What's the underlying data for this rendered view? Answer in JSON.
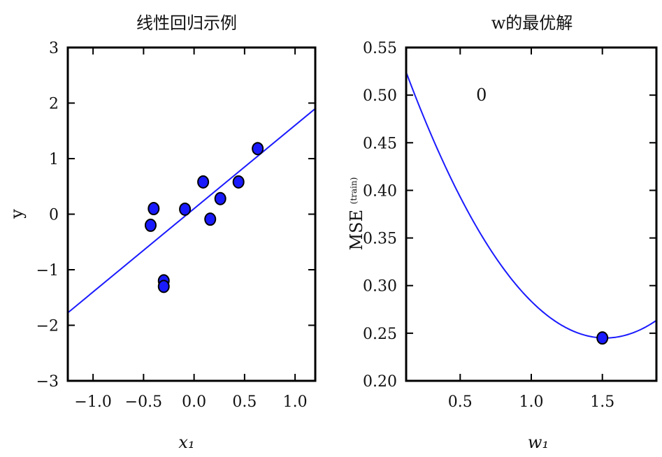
{
  "chart_data": [
    {
      "type": "scatter",
      "title": "线性回归示例",
      "xlabel": "x₁",
      "ylabel": "y",
      "xlim": [
        -1.25,
        1.2
      ],
      "ylim": [
        -3,
        3
      ],
      "xticks": [
        -1.0,
        -0.5,
        0.0,
        0.5,
        1.0
      ],
      "xtick_labels": [
        "−1.0",
        "−0.5",
        "0.0",
        "0.5",
        "1.0"
      ],
      "yticks": [
        -3,
        -2,
        -1,
        0,
        1,
        2,
        3
      ],
      "ytick_labels": [
        "−3",
        "−2",
        "−1",
        "0",
        "1",
        "2",
        "3"
      ],
      "grid": false,
      "legend": "none",
      "series": [
        {
          "kind": "points",
          "color": "#1a1aff",
          "points": [
            {
              "x": -0.43,
              "y": -0.2
            },
            {
              "x": -0.4,
              "y": 0.1
            },
            {
              "x": -0.3,
              "y": -1.2
            },
            {
              "x": -0.3,
              "y": -1.3
            },
            {
              "x": -0.09,
              "y": 0.09
            },
            {
              "x": 0.09,
              "y": 0.58
            },
            {
              "x": 0.16,
              "y": -0.09
            },
            {
              "x": 0.26,
              "y": 0.28
            },
            {
              "x": 0.44,
              "y": 0.58
            },
            {
              "x": 0.63,
              "y": 1.18
            }
          ]
        },
        {
          "kind": "line",
          "color": "#1a1aff",
          "slope": 1.5,
          "intercept": 0.1,
          "x_range": [
            -1.32,
            1.48
          ]
        }
      ]
    },
    {
      "type": "line",
      "title": "w的最优解",
      "xlabel": "w₁",
      "ylabel": "MSE",
      "ylabel_subscript": "(train)",
      "xlim": [
        0.12,
        1.88
      ],
      "ylim": [
        0.2,
        0.55
      ],
      "xticks": [
        0.5,
        1.0,
        1.5
      ],
      "xtick_labels": [
        "0.5",
        "1.0",
        "1.5"
      ],
      "yticks": [
        0.2,
        0.25,
        0.3,
        0.35,
        0.4,
        0.45,
        0.5,
        0.55
      ],
      "ytick_labels": [
        "0.20",
        "0.25",
        "0.30",
        "0.35",
        "0.40",
        "0.45",
        "0.50",
        "0.55"
      ],
      "grid": false,
      "legend": "none",
      "annotation": "0",
      "annotation_position": {
        "x": 0.65,
        "y": 0.5
      },
      "series": [
        {
          "kind": "curve",
          "color": "#1a1aff",
          "quadratic": {
            "a": 0.1424,
            "b": 1.52,
            "c": 0.245
          },
          "x_range": [
            0.12,
            1.88
          ]
        },
        {
          "kind": "points",
          "color": "#1a1aff",
          "points": [
            {
              "x": 1.5,
              "y": 0.245
            }
          ]
        }
      ]
    }
  ]
}
